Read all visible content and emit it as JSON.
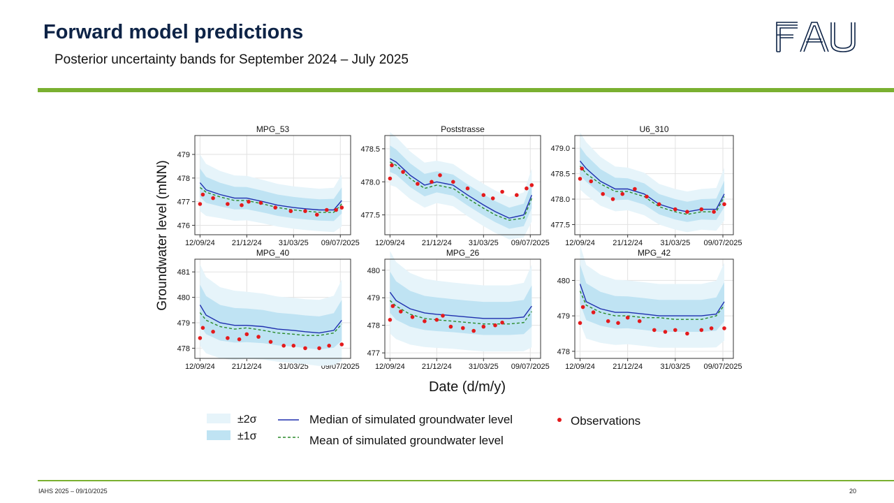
{
  "slide": {
    "title": "Forward model predictions",
    "subtitle": "Posterior uncertainty bands for September 2024 – July 2025",
    "logo_text": "FAU",
    "footer_left": "IAHS 2025 – 09/10/2025",
    "page_number": "20"
  },
  "colors": {
    "accent": "#7ab030",
    "title": "#0d2346",
    "band2": "#e6f4fa",
    "band1": "#bfe3f3",
    "median": "#1f2fae",
    "mean": "#2a8a2a",
    "obs": "#e41a1c"
  },
  "chart_data": {
    "type": "line",
    "ylabel": "Groundwater level (mNN)",
    "xlabel": "Date (d/m/y)",
    "x_ticks": [
      "12/09/24",
      "21/12/24",
      "31/03/25",
      "09/07/2025"
    ],
    "x_range": [
      "2024-09-01",
      "2025-07-31"
    ],
    "grid": true,
    "legend": {
      "placement": "bottom",
      "entries": [
        "±2σ",
        "±1σ",
        "Median of simulated groundwater level",
        "Mean of simulated groundwater level",
        "Observations"
      ]
    },
    "panels": [
      {
        "title": "MPG_53",
        "ylim": [
          475.6,
          479.8
        ],
        "yticks": [
          476,
          477,
          478,
          479
        ],
        "ytick_labels": [
          "476",
          "477",
          "478",
          "479"
        ],
        "dates": [
          "2024-09-12",
          "2024-09-25",
          "2024-10-25",
          "2024-11-25",
          "2024-12-21",
          "2025-01-25",
          "2025-02-25",
          "2025-03-31",
          "2025-04-25",
          "2025-05-25",
          "2025-06-25",
          "2025-07-12"
        ],
        "median": [
          477.8,
          477.5,
          477.3,
          477.15,
          477.15,
          477.0,
          476.85,
          476.75,
          476.7,
          476.65,
          476.65,
          477.05
        ],
        "mean": [
          477.6,
          477.4,
          477.2,
          477.05,
          477.05,
          476.9,
          476.75,
          476.65,
          476.6,
          476.55,
          476.55,
          476.9
        ],
        "sd": [
          0.6,
          0.55,
          0.5,
          0.48,
          0.47,
          0.46,
          0.45,
          0.45,
          0.45,
          0.45,
          0.47,
          0.55
        ],
        "obs_dates": [
          "2024-09-12",
          "2024-09-18",
          "2024-10-10",
          "2024-11-10",
          "2024-12-10",
          "2024-12-25",
          "2025-01-20",
          "2025-02-20",
          "2025-03-25",
          "2025-04-25",
          "2025-05-20",
          "2025-06-10",
          "2025-06-30",
          "2025-07-12"
        ],
        "obs": [
          476.9,
          477.3,
          477.15,
          476.9,
          476.85,
          477.0,
          476.95,
          476.75,
          476.6,
          476.6,
          476.45,
          476.65,
          476.65,
          476.75
        ]
      },
      {
        "title": "Poststrasse",
        "ylim": [
          477.2,
          478.7
        ],
        "yticks": [
          477.5,
          478.0,
          478.5
        ],
        "ytick_labels": [
          "477.5",
          "478.0",
          "478.5"
        ],
        "dates": [
          "2024-09-12",
          "2024-09-25",
          "2024-10-25",
          "2024-11-25",
          "2024-12-21",
          "2025-01-25",
          "2025-02-25",
          "2025-03-31",
          "2025-04-25",
          "2025-05-25",
          "2025-06-25",
          "2025-07-12"
        ],
        "median": [
          478.35,
          478.3,
          478.1,
          477.95,
          478.0,
          477.95,
          477.8,
          477.65,
          477.55,
          477.45,
          477.5,
          477.8
        ],
        "mean": [
          478.3,
          478.25,
          478.05,
          477.9,
          477.95,
          477.9,
          477.75,
          477.6,
          477.5,
          477.42,
          477.45,
          477.75
        ],
        "sd": [
          0.2,
          0.19,
          0.18,
          0.17,
          0.16,
          0.16,
          0.16,
          0.16,
          0.16,
          0.16,
          0.17,
          0.2
        ],
        "obs_dates": [
          "2024-09-12",
          "2024-09-16",
          "2024-10-10",
          "2024-11-10",
          "2024-12-10",
          "2024-12-28",
          "2025-01-25",
          "2025-02-25",
          "2025-03-31",
          "2025-04-20",
          "2025-05-10",
          "2025-06-10",
          "2025-07-01",
          "2025-07-12"
        ],
        "obs": [
          478.05,
          478.25,
          478.15,
          477.97,
          478.0,
          478.1,
          478.0,
          477.9,
          477.8,
          477.75,
          477.85,
          477.8,
          477.9,
          477.95
        ]
      },
      {
        "title": "U6_310",
        "ylim": [
          477.3,
          479.25
        ],
        "yticks": [
          477.5,
          478.0,
          478.5,
          479.0
        ],
        "ytick_labels": [
          "477.5",
          "478.0",
          "478.5",
          "479.0"
        ],
        "dates": [
          "2024-09-12",
          "2024-09-25",
          "2024-10-25",
          "2024-11-25",
          "2024-12-21",
          "2025-01-25",
          "2025-02-25",
          "2025-03-31",
          "2025-04-25",
          "2025-05-25",
          "2025-06-25",
          "2025-07-12"
        ],
        "median": [
          478.75,
          478.6,
          478.35,
          478.2,
          478.2,
          478.1,
          477.9,
          477.8,
          477.75,
          477.8,
          477.8,
          478.1
        ],
        "mean": [
          478.65,
          478.5,
          478.3,
          478.15,
          478.15,
          478.05,
          477.85,
          477.75,
          477.7,
          477.75,
          477.75,
          478.05
        ],
        "sd": [
          0.28,
          0.26,
          0.24,
          0.22,
          0.21,
          0.21,
          0.2,
          0.2,
          0.2,
          0.2,
          0.21,
          0.26
        ],
        "obs_dates": [
          "2024-09-12",
          "2024-09-16",
          "2024-10-05",
          "2024-10-30",
          "2024-11-20",
          "2024-12-10",
          "2025-01-05",
          "2025-01-30",
          "2025-02-25",
          "2025-03-31",
          "2025-04-25",
          "2025-05-25",
          "2025-06-20",
          "2025-07-12"
        ],
        "obs": [
          478.4,
          478.6,
          478.35,
          478.1,
          478.0,
          478.1,
          478.2,
          478.05,
          477.9,
          477.8,
          477.75,
          477.8,
          477.75,
          477.9
        ]
      },
      {
        "title": "MPG_40",
        "ylim": [
          477.6,
          481.5
        ],
        "yticks": [
          478,
          479,
          480,
          481
        ],
        "ytick_labels": [
          "478",
          "479",
          "480",
          "481"
        ],
        "dates": [
          "2024-09-12",
          "2024-09-25",
          "2024-10-25",
          "2024-11-25",
          "2024-12-21",
          "2025-01-25",
          "2025-02-25",
          "2025-03-31",
          "2025-04-25",
          "2025-05-25",
          "2025-06-25",
          "2025-07-12"
        ],
        "median": [
          479.7,
          479.3,
          479.0,
          478.9,
          478.9,
          478.85,
          478.75,
          478.7,
          478.65,
          478.6,
          478.7,
          479.1
        ],
        "mean": [
          479.4,
          479.1,
          478.85,
          478.75,
          478.8,
          478.7,
          478.6,
          478.55,
          478.5,
          478.5,
          478.6,
          478.95
        ],
        "sd": [
          0.8,
          0.75,
          0.7,
          0.68,
          0.66,
          0.65,
          0.64,
          0.64,
          0.64,
          0.65,
          0.68,
          0.8
        ],
        "obs_dates": [
          "2024-09-12",
          "2024-09-18",
          "2024-10-10",
          "2024-11-10",
          "2024-12-05",
          "2024-12-21",
          "2025-01-15",
          "2025-02-10",
          "2025-03-10",
          "2025-03-31",
          "2025-04-25",
          "2025-05-25",
          "2025-06-15",
          "2025-07-12"
        ],
        "obs": [
          478.4,
          478.8,
          478.65,
          478.4,
          478.35,
          478.55,
          478.45,
          478.25,
          478.1,
          478.1,
          478.0,
          478.0,
          478.1,
          478.15
        ]
      },
      {
        "title": "MPG_26",
        "ylim": [
          476.8,
          480.4
        ],
        "yticks": [
          477,
          478,
          479,
          480
        ],
        "ytick_labels": [
          "477",
          "478",
          "479",
          "480"
        ],
        "dates": [
          "2024-09-12",
          "2024-09-25",
          "2024-10-25",
          "2024-11-25",
          "2024-12-21",
          "2025-01-25",
          "2025-02-25",
          "2025-03-31",
          "2025-04-25",
          "2025-05-25",
          "2025-06-25",
          "2025-07-12"
        ],
        "median": [
          479.2,
          478.9,
          478.6,
          478.45,
          478.4,
          478.35,
          478.3,
          478.25,
          478.25,
          478.25,
          478.3,
          478.7
        ],
        "mean": [
          478.9,
          478.7,
          478.4,
          478.25,
          478.2,
          478.15,
          478.1,
          478.05,
          478.05,
          478.05,
          478.1,
          478.5
        ],
        "sd": [
          0.75,
          0.7,
          0.65,
          0.62,
          0.61,
          0.6,
          0.6,
          0.6,
          0.6,
          0.6,
          0.62,
          0.75
        ],
        "obs_dates": [
          "2024-09-12",
          "2024-09-18",
          "2024-10-05",
          "2024-10-30",
          "2024-11-25",
          "2024-12-21",
          "2025-01-03",
          "2025-01-20",
          "2025-02-15",
          "2025-03-10",
          "2025-03-31",
          "2025-04-25",
          "2025-05-10"
        ],
        "obs": [
          478.2,
          478.7,
          478.5,
          478.3,
          478.15,
          478.2,
          478.35,
          477.95,
          477.9,
          477.8,
          477.95,
          478.0,
          478.1
        ]
      },
      {
        "title": "MPG_42",
        "ylim": [
          477.8,
          480.6
        ],
        "yticks": [
          478,
          479,
          480
        ],
        "ytick_labels": [
          "478",
          "479",
          "480"
        ],
        "dates": [
          "2024-09-12",
          "2024-09-25",
          "2024-10-25",
          "2024-11-25",
          "2024-12-21",
          "2025-01-25",
          "2025-02-25",
          "2025-03-31",
          "2025-04-25",
          "2025-05-25",
          "2025-06-25",
          "2025-07-12"
        ],
        "median": [
          479.9,
          479.4,
          479.2,
          479.1,
          479.1,
          479.05,
          479.0,
          479.0,
          479.0,
          479.0,
          479.05,
          479.4
        ],
        "mean": [
          479.7,
          479.3,
          479.1,
          479.0,
          479.0,
          478.95,
          478.95,
          478.9,
          478.9,
          478.9,
          479.0,
          479.3
        ],
        "sd": [
          0.55,
          0.52,
          0.48,
          0.46,
          0.45,
          0.45,
          0.45,
          0.45,
          0.45,
          0.45,
          0.47,
          0.55
        ],
        "obs_dates": [
          "2024-09-12",
          "2024-09-18",
          "2024-10-10",
          "2024-11-10",
          "2024-12-01",
          "2024-12-21",
          "2025-01-15",
          "2025-02-15",
          "2025-03-10",
          "2025-03-31",
          "2025-04-25",
          "2025-05-25",
          "2025-06-15",
          "2025-07-12"
        ],
        "obs": [
          478.8,
          479.25,
          479.1,
          478.85,
          478.8,
          478.95,
          478.85,
          478.6,
          478.55,
          478.6,
          478.5,
          478.6,
          478.65,
          478.65
        ]
      }
    ]
  }
}
